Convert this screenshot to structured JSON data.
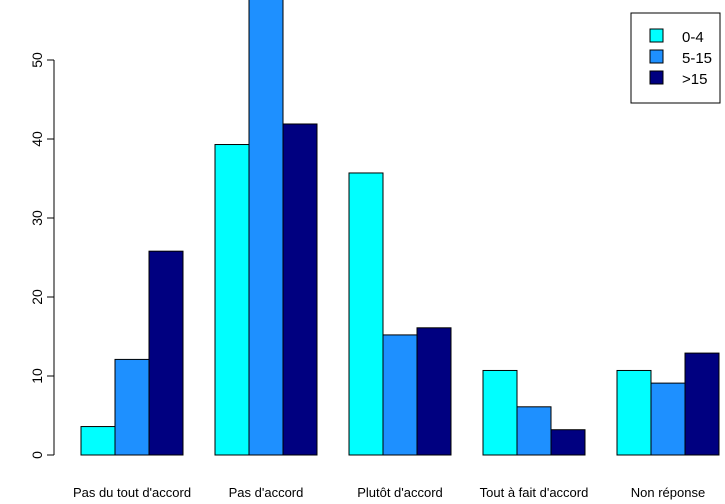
{
  "chart_data": {
    "type": "bar",
    "title": "",
    "xlabel": "",
    "ylabel": "",
    "categories": [
      "Pas du tout d'accord",
      "Pas d'accord",
      "Plutôt d'accord",
      "Tout à fait d'accord",
      "Non réponse"
    ],
    "series": [
      {
        "name": "0-4",
        "color": "#00FFFF",
        "values": [
          3.6,
          39.3,
          35.7,
          10.7,
          10.7
        ]
      },
      {
        "name": "5-15",
        "color": "#1E90FF",
        "values": [
          12.1,
          59.0,
          15.2,
          6.1,
          9.1
        ]
      },
      {
        "name": ">15",
        "color": "#000080",
        "values": [
          25.8,
          41.9,
          16.1,
          3.2,
          12.9
        ]
      }
    ],
    "yticks": [
      0,
      10,
      20,
      30,
      40,
      50
    ],
    "ylim": [
      0,
      59
    ],
    "legend": {
      "position": "top-right"
    },
    "grid": false
  }
}
